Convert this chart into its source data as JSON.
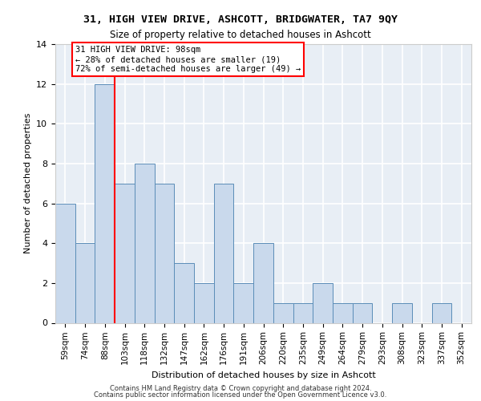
{
  "title1": "31, HIGH VIEW DRIVE, ASHCOTT, BRIDGWATER, TA7 9QY",
  "title2": "Size of property relative to detached houses in Ashcott",
  "xlabel": "Distribution of detached houses by size in Ashcott",
  "ylabel": "Number of detached properties",
  "bar_labels": [
    "59sqm",
    "74sqm",
    "88sqm",
    "103sqm",
    "118sqm",
    "132sqm",
    "147sqm",
    "162sqm",
    "176sqm",
    "191sqm",
    "206sqm",
    "220sqm",
    "235sqm",
    "249sqm",
    "264sqm",
    "279sqm",
    "293sqm",
    "308sqm",
    "323sqm",
    "337sqm",
    "352sqm"
  ],
  "bar_heights": [
    6,
    4,
    12,
    7,
    8,
    7,
    3,
    2,
    7,
    2,
    4,
    1,
    1,
    2,
    1,
    1,
    0,
    1,
    0,
    1,
    0
  ],
  "bar_color": "#c9d9ec",
  "bar_edge_color": "#5b8db8",
  "vline_color": "red",
  "annotation_text": "31 HIGH VIEW DRIVE: 98sqm\n← 28% of detached houses are smaller (19)\n72% of semi-detached houses are larger (49) →",
  "annotation_box_color": "white",
  "annotation_box_edge": "red",
  "ylim": [
    0,
    14
  ],
  "yticks": [
    0,
    2,
    4,
    6,
    8,
    10,
    12,
    14
  ],
  "footer1": "Contains HM Land Registry data © Crown copyright and database right 2024.",
  "footer2": "Contains public sector information licensed under the Open Government Licence v3.0.",
  "plot_bg_color": "#e8eef5"
}
